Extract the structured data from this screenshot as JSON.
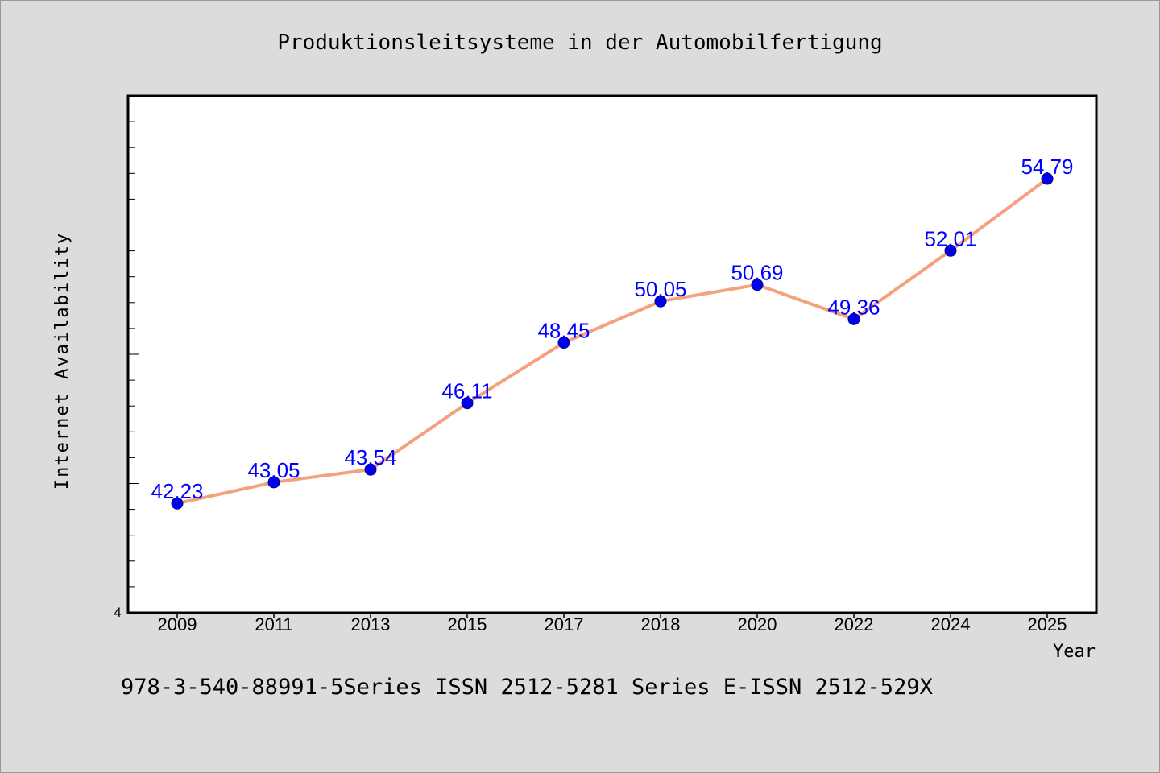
{
  "chart_data": {
    "type": "line",
    "title": "Produktionsleitsysteme in der Automobilfertigung",
    "xlabel": "Year",
    "ylabel": "Internet Availability",
    "categories": [
      "2009",
      "2011",
      "2013",
      "2015",
      "2017",
      "2018",
      "2020",
      "2022",
      "2024",
      "2025"
    ],
    "values": [
      42.23,
      43.05,
      43.54,
      46.11,
      48.45,
      50.05,
      50.69,
      49.36,
      52.01,
      54.79
    ],
    "value_labels": [
      "42.23",
      "43.05",
      "43.54",
      "46.11",
      "48.45",
      "50.05",
      "50.69",
      "49.36",
      "52.01",
      "54.79"
    ],
    "y_axis_bottom_label": "4",
    "ylim": [
      38.0,
      58.0
    ],
    "grid": false,
    "line_color": "#f4a27e",
    "marker_color": "#0000ee",
    "label_color": "#0000ff"
  },
  "footer": "978-3-540-88991-5Series ISSN 2512-5281 Series E-ISSN 2512-529X"
}
